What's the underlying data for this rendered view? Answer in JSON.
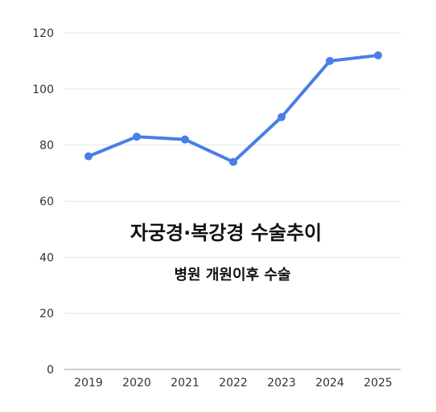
{
  "chart_data": {
    "type": "line",
    "title": "자궁경·복강경 수술추이",
    "subtitle": "병원 개원이후 수술",
    "categories": [
      "2019",
      "2020",
      "2021",
      "2022",
      "2023",
      "2024",
      "2025"
    ],
    "series": [
      {
        "values": [
          76,
          83,
          82,
          74,
          90,
          110,
          112
        ]
      }
    ],
    "ylim": [
      0,
      120
    ],
    "yticks": [
      0,
      20,
      40,
      60,
      80,
      100,
      120
    ],
    "grid": true,
    "legend": "none",
    "colors": {
      "line": "#4a7ee8",
      "grid": "#e6e6e6",
      "axis": "#999999"
    }
  }
}
